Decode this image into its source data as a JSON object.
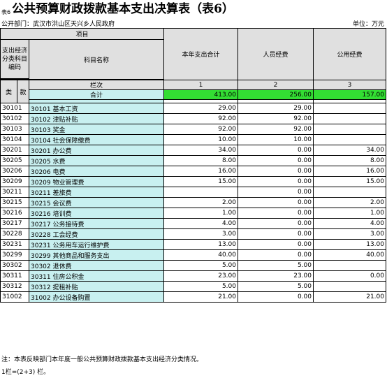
{
  "header": {
    "table_no": "表6",
    "title": "公共预算财政拨款基本支出决算表（表6）",
    "dept": "公开部门：武汉市洪山区天兴乡人民政府",
    "unit": "单位：万元"
  },
  "columns": {
    "project": "项目",
    "econ_code": "支出经济分类科目编码",
    "subject_name": "科目名称",
    "lei": "类",
    "kuan": "款",
    "col_index": "栏次",
    "total_label": "合计",
    "total": "本年支出合计",
    "personnel": "人员经费",
    "public": "公用经费",
    "col1": "1",
    "col2": "2",
    "col3": "3"
  },
  "totals": {
    "total": "413.00",
    "personnel": "256.00",
    "public": "157.00"
  },
  "rows": [
    {
      "code": "30101",
      "name": "30101 基本工资",
      "total": "29.00",
      "personnel": "29.00",
      "public": ""
    },
    {
      "code": "30102",
      "name": "30102 津贴补贴",
      "total": "92.00",
      "personnel": "92.00",
      "public": ""
    },
    {
      "code": "30103",
      "name": "30103 奖金",
      "total": "92.00",
      "personnel": "92.00",
      "public": ""
    },
    {
      "code": "30104",
      "name": "30104 社会保障缴费",
      "total": "10.00",
      "personnel": "10.00",
      "public": ""
    },
    {
      "code": "30201",
      "name": "30201 办公费",
      "total": "34.00",
      "personnel": "0.00",
      "public": "34.00"
    },
    {
      "code": "30205",
      "name": "30205 水费",
      "total": "8.00",
      "personnel": "0.00",
      "public": "8.00"
    },
    {
      "code": "30206",
      "name": "30206 电费",
      "total": "16.00",
      "personnel": "0.00",
      "public": "16.00"
    },
    {
      "code": "30209",
      "name": "30209 物业管理费",
      "total": "15.00",
      "personnel": "0.00",
      "public": "15.00"
    },
    {
      "code": "30211",
      "name": "30211 差旅费",
      "total": "",
      "personnel": "0.00",
      "public": ""
    },
    {
      "code": "30215",
      "name": "30215 会议费",
      "total": "2.00",
      "personnel": "0.00",
      "public": "2.00"
    },
    {
      "code": "30216",
      "name": "30216 培训费",
      "total": "1.00",
      "personnel": "0.00",
      "public": "1.00"
    },
    {
      "code": "30217",
      "name": "30217 公务接待费",
      "total": "4.00",
      "personnel": "0.00",
      "public": "4.00"
    },
    {
      "code": "30228",
      "name": "30228 工会经费",
      "total": "3.00",
      "personnel": "0.00",
      "public": "3.00"
    },
    {
      "code": "30231",
      "name": "30231 公务用车运行维护费",
      "total": "13.00",
      "personnel": "0.00",
      "public": "13.00"
    },
    {
      "code": "30299",
      "name": "30299 其他商品和服务支出",
      "total": "40.00",
      "personnel": "0.00",
      "public": "40.00"
    },
    {
      "code": "30302",
      "name": "30302 退休费",
      "total": "5.00",
      "personnel": "5.00",
      "public": ""
    },
    {
      "code": "30311",
      "name": "30311 住房公积金",
      "total": "23.00",
      "personnel": "23.00",
      "public": "0.00"
    },
    {
      "code": "30312",
      "name": "30312 提租补贴",
      "total": "5.00",
      "personnel": "5.00",
      "public": ""
    },
    {
      "code": "31002",
      "name": "31002 办公设备购置",
      "total": "21.00",
      "personnel": "0.00",
      "public": "21.00"
    }
  ],
  "notes": {
    "note1": "注：本表反映部门本年度一般公共预算财政拨款基本支出经济分类情况。",
    "note2": "1栏=(2+3) 栏。"
  }
}
